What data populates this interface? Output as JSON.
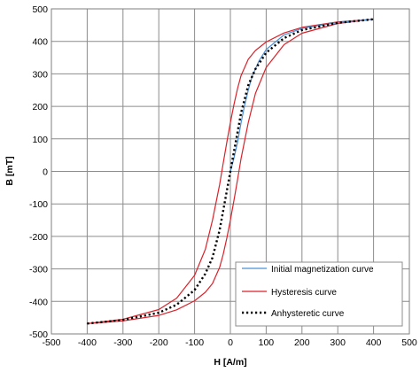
{
  "chart_data": {
    "type": "line",
    "xlabel": "H [A/m]",
    "ylabel": "B [mT]",
    "xlim": [
      -500,
      500
    ],
    "ylim": [
      -500,
      500
    ],
    "x_ticks": [
      "-500",
      "-400",
      "-300",
      "-200",
      "-100",
      "0",
      "100",
      "200",
      "300",
      "400",
      "500"
    ],
    "y_ticks": [
      "500",
      "400",
      "300",
      "200",
      "100",
      "0",
      "-100",
      "-200",
      "-300",
      "-400",
      "-500"
    ],
    "grid": true,
    "legend_position": "bottom-right",
    "series": [
      {
        "name": "Initial magnetization curve",
        "color": "#4a90d9",
        "style": "solid",
        "x": [
          0,
          10,
          20,
          30,
          40,
          50,
          60,
          80,
          100,
          150,
          200,
          300,
          400
        ],
        "y": [
          0,
          40,
          90,
          150,
          205,
          250,
          290,
          340,
          375,
          420,
          440,
          458,
          468
        ]
      },
      {
        "name": "Hysteresis curve",
        "color": "#d9222a",
        "style": "solid",
        "x": [
          400,
          300,
          200,
          150,
          100,
          70,
          50,
          30,
          20,
          10,
          0,
          -10,
          -20,
          -30,
          -50,
          -70,
          -100,
          -150,
          -200,
          -300,
          -400,
          -300,
          -200,
          -150,
          -100,
          -70,
          -50,
          -30,
          -20,
          -10,
          0,
          10,
          20,
          30,
          50,
          70,
          100,
          150,
          200,
          300,
          400
        ],
        "y": [
          468,
          460,
          443,
          426,
          398,
          372,
          345,
          295,
          255,
          205,
          150,
          90,
          25,
          -40,
          -150,
          -240,
          -320,
          -390,
          -425,
          -455,
          -468,
          -460,
          -443,
          -426,
          -398,
          -372,
          -345,
          -295,
          -255,
          -205,
          -150,
          -90,
          -25,
          40,
          150,
          240,
          320,
          390,
          425,
          455,
          468
        ]
      },
      {
        "name": "Anhysteretic curve",
        "color": "#000000",
        "style": "dotted",
        "x": [
          -400,
          -300,
          -200,
          -150,
          -100,
          -70,
          -50,
          -30,
          -10,
          0,
          10,
          30,
          50,
          70,
          100,
          150,
          200,
          300,
          400
        ],
        "y": [
          -468,
          -457,
          -435,
          -410,
          -365,
          -315,
          -265,
          -180,
          -60,
          0,
          60,
          180,
          265,
          315,
          365,
          410,
          435,
          457,
          468
        ]
      }
    ]
  }
}
